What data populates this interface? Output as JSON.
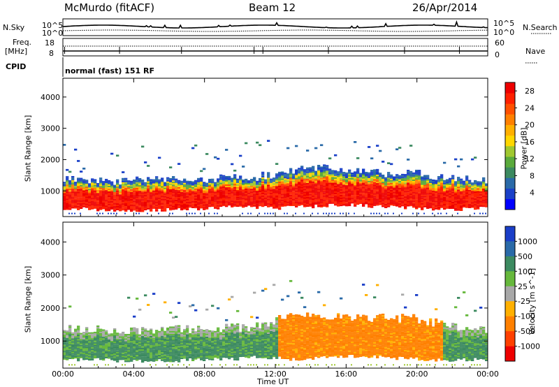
{
  "header": {
    "station": "McMurdo (fitACF)",
    "beam": "Beam 12",
    "date": "26/Apr/2014"
  },
  "panel_labels": {
    "nsky": "N.Sky",
    "nsearch": "N.Search",
    "freq_line1": "Freq.",
    "freq_line2": "[MHz]",
    "nave": "Nave",
    "cpid": "CPID",
    "cpid_value": "normal (fast) 151 RF",
    "noise_left_top": "10^5",
    "noise_left_bottom": "10^0",
    "noise_right_top": "10^5",
    "noise_right_bottom": "10^0",
    "freq_top": "18",
    "freq_bottom": "8",
    "nave_top": "60",
    "nave_bottom": "0"
  },
  "chart_data": [
    {
      "type": "heatmap",
      "title": "",
      "xlabel": "Time UT",
      "ylabel": "Slant Range [km]",
      "x_ticks": [
        "00:00",
        "04:00",
        "08:00",
        "12:00",
        "16:00",
        "20:00",
        "00:00"
      ],
      "y_ticks": [
        "1000",
        "2000",
        "3000",
        "4000"
      ],
      "ylim": [
        180,
        4600
      ],
      "xlim_hours": [
        0,
        24
      ],
      "colorbar": {
        "label": "Power [dB]",
        "ticks": [
          "4",
          "8",
          "12",
          "16",
          "20",
          "24",
          "28"
        ],
        "range": [
          0,
          30
        ],
        "colors": [
          "#0000ff",
          "#1a40c8",
          "#2a6aa8",
          "#3c8a60",
          "#5aaa3c",
          "#a0c830",
          "#ffd700",
          "#ffb000",
          "#ff8000",
          "#ff5000",
          "#ff2000",
          "#ee0000"
        ]
      },
      "profile_km": [
        {
          "t": 0,
          "bottom": 450,
          "top": 1350,
          "core_top": 1000
        },
        {
          "t": 2,
          "bottom": 400,
          "top": 1300,
          "core_top": 1050
        },
        {
          "t": 4,
          "bottom": 380,
          "top": 1300,
          "core_top": 1050
        },
        {
          "t": 6,
          "bottom": 400,
          "top": 1350,
          "core_top": 1100
        },
        {
          "t": 8,
          "bottom": 420,
          "top": 1350,
          "core_top": 1050
        },
        {
          "t": 10,
          "bottom": 500,
          "top": 1400,
          "core_top": 1100
        },
        {
          "t": 12,
          "bottom": 450,
          "top": 1500,
          "core_top": 1000
        },
        {
          "t": 14,
          "bottom": 500,
          "top": 1750,
          "core_top": 1000
        },
        {
          "t": 16,
          "bottom": 550,
          "top": 1600,
          "core_top": 900
        },
        {
          "t": 18,
          "bottom": 500,
          "top": 1550,
          "core_top": 950
        },
        {
          "t": 20,
          "bottom": 450,
          "top": 1550,
          "core_top": 1000
        },
        {
          "t": 22,
          "bottom": 400,
          "top": 1400,
          "core_top": 1050
        },
        {
          "t": 24,
          "bottom": 450,
          "top": 1300,
          "core_top": 1000
        }
      ]
    },
    {
      "type": "heatmap",
      "title": "",
      "xlabel": "Time UT",
      "ylabel": "Slant Range [km]",
      "x_ticks": [
        "00:00",
        "04:00",
        "08:00",
        "12:00",
        "16:00",
        "20:00",
        "00:00"
      ],
      "y_ticks": [
        "1000",
        "2000",
        "3000",
        "4000"
      ],
      "ylim": [
        180,
        4600
      ],
      "xlim_hours": [
        0,
        24
      ],
      "colorbar": {
        "label": "Velocity [m s^-1]",
        "ticks": [
          "1000",
          "500",
          "100",
          "25",
          "-25",
          "-100",
          "-500",
          "-1000"
        ],
        "colors": [
          "#1a3ec8",
          "#2a6aa8",
          "#3c8a60",
          "#66b83c",
          "#a8a8a8",
          "#ffb000",
          "#ff8000",
          "#ff4000",
          "#ee0000"
        ]
      },
      "profile_km": [
        {
          "t": 0,
          "bottom": 450,
          "top": 1350,
          "sign": "pos"
        },
        {
          "t": 4,
          "bottom": 400,
          "top": 1300,
          "sign": "pos"
        },
        {
          "t": 8,
          "bottom": 420,
          "top": 1350,
          "sign": "pos"
        },
        {
          "t": 11,
          "bottom": 500,
          "top": 1400,
          "sign": "pos"
        },
        {
          "t": 13,
          "bottom": 450,
          "top": 1800,
          "sign": "neg"
        },
        {
          "t": 16,
          "bottom": 550,
          "top": 1700,
          "sign": "neg"
        },
        {
          "t": 20,
          "bottom": 450,
          "top": 1650,
          "sign": "neg"
        },
        {
          "t": 22,
          "bottom": 420,
          "top": 1450,
          "sign": "pos"
        },
        {
          "t": 24,
          "bottom": 450,
          "top": 1300,
          "sign": "pos"
        }
      ]
    }
  ]
}
